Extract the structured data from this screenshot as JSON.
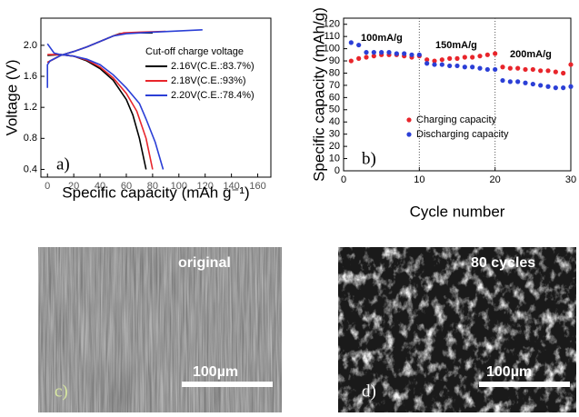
{
  "chart_data": [
    {
      "type": "line",
      "panel_label": "a)",
      "xlabel": "Specific capacity (mAh g⁻¹)",
      "ylabel": "Voltage (V)",
      "xlim": [
        -5,
        170
      ],
      "ylim": [
        0.3,
        2.35
      ],
      "xticks": [
        0,
        20,
        40,
        60,
        80,
        100,
        120,
        140,
        160
      ],
      "yticks": [
        0.4,
        0.8,
        1.2,
        1.6,
        {
          "value": 2.0,
          "label": "2.0"
        }
      ],
      "legend_title": "Cut-off charge voltage",
      "legend": "upper right",
      "series": [
        {
          "name": "2.16V(C.E.:83.7%)",
          "color": "#000000",
          "x": [
            0,
            10,
            20,
            30,
            40,
            50,
            55,
            65,
            80,
            null,
            0,
            10,
            20,
            30,
            40,
            50,
            60,
            65,
            70,
            75
          ],
          "values": [
            1.78,
            1.87,
            1.92,
            1.98,
            2.05,
            2.12,
            2.15,
            2.16,
            2.16,
            null,
            1.87,
            1.88,
            1.86,
            1.8,
            1.7,
            1.55,
            1.3,
            1.1,
            0.8,
            0.4
          ]
        },
        {
          "name": "2.18V(C.E.:93%)",
          "color": "#e8252b",
          "x": [
            0,
            10,
            20,
            30,
            40,
            50,
            58,
            70,
            90,
            null,
            0,
            10,
            20,
            30,
            40,
            50,
            60,
            68,
            75,
            80
          ],
          "values": [
            1.78,
            1.87,
            1.92,
            1.98,
            2.05,
            2.12,
            2.16,
            2.17,
            2.18,
            null,
            1.88,
            1.88,
            1.86,
            1.81,
            1.72,
            1.58,
            1.38,
            1.15,
            0.8,
            0.4
          ]
        },
        {
          "name": "2.20V(C.E.:78.4%)",
          "color": "#2b3fd6",
          "x": [
            0,
            0,
            2,
            10,
            20,
            30,
            40,
            50,
            60,
            80,
            118,
            null,
            0,
            5,
            10,
            20,
            30,
            40,
            50,
            60,
            70,
            75,
            82,
            88
          ],
          "values": [
            1.45,
            1.75,
            1.8,
            1.87,
            1.92,
            1.98,
            2.05,
            2.12,
            2.15,
            2.17,
            2.2,
            null,
            2.02,
            1.9,
            1.88,
            1.86,
            1.82,
            1.75,
            1.62,
            1.45,
            1.25,
            1.05,
            0.75,
            0.4
          ]
        }
      ]
    },
    {
      "type": "scatter",
      "panel_label": "b)",
      "xlabel": "Cycle number",
      "ylabel": "Specific capacity (mAh/g)",
      "xlim": [
        0,
        30
      ],
      "ylim": [
        0,
        125
      ],
      "xticks": [
        0,
        10,
        20,
        30
      ],
      "yticks": [
        0,
        10,
        20,
        30,
        40,
        50,
        60,
        70,
        80,
        90,
        100,
        110,
        120
      ],
      "dividers": [
        10,
        20
      ],
      "annotations": [
        "100mA/g",
        "150mA/g",
        "200mA/g"
      ],
      "legend": "center right",
      "x": [
        1,
        2,
        3,
        4,
        5,
        6,
        7,
        8,
        9,
        10,
        11,
        12,
        13,
        14,
        15,
        16,
        17,
        18,
        19,
        20,
        21,
        22,
        23,
        24,
        25,
        26,
        27,
        28,
        29,
        30
      ],
      "series": [
        {
          "name": "Charging capacity",
          "color": "#e8252b",
          "values": [
            90,
            92,
            93,
            94,
            95,
            95,
            95,
            94,
            93,
            94,
            91,
            90,
            91,
            92,
            92,
            93,
            93,
            94,
            95,
            96,
            85,
            84,
            84,
            83,
            83,
            82,
            82,
            81,
            80,
            87
          ]
        },
        {
          "name": "Discharging capacity",
          "color": "#2b3fd6",
          "values": [
            105,
            103,
            97,
            97,
            97,
            97,
            96,
            96,
            95,
            95,
            88,
            87,
            87,
            86,
            86,
            85,
            85,
            84,
            83,
            83,
            74,
            73,
            73,
            72,
            71,
            70,
            69,
            68,
            68,
            69
          ]
        }
      ]
    }
  ],
  "images": [
    {
      "caption": "original",
      "scale_bar": "100µm",
      "label": "c)"
    },
    {
      "caption": "80 cycles",
      "scale_bar": "100µm",
      "label": "d)"
    }
  ]
}
